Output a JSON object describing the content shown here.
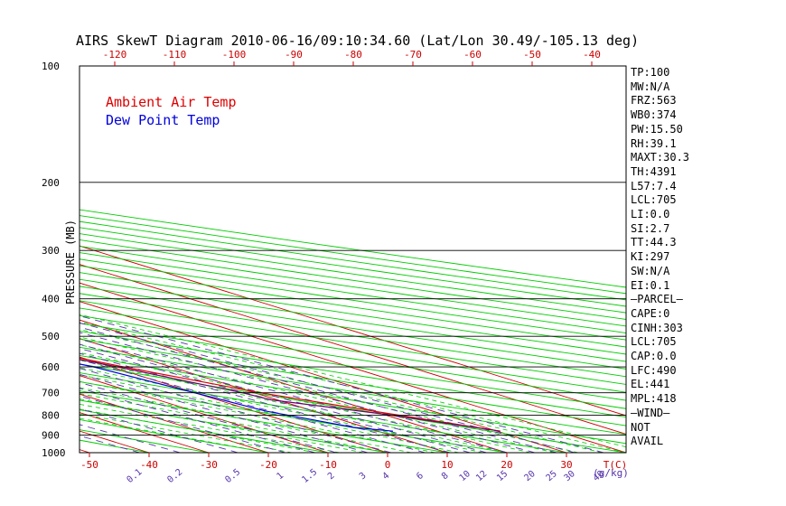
{
  "title": "AIRS SkewT Diagram 2010-06-16/09:10:34.60 (Lat/Lon 30.49/-105.13 deg)",
  "ylabel": "PRESSURE (MB)",
  "xlabel_unit": "T(C)",
  "mixing_label": "(g/kg)",
  "colors": {
    "temp": "#dd0000",
    "dew": "#0000dd",
    "parcel": "#6b006b",
    "isotherm": "#cc0000",
    "dry_adiabat": "#00cc00",
    "moist_adiabat": "#00cc00",
    "mixing_ratio": "#5533aa",
    "frame": "#000000"
  },
  "chart_data": {
    "type": "line",
    "title": "AIRS SkewT Diagram 2010-06-16/09:10:34.60 (Lat/Lon 30.49/-105.13 deg)",
    "ylabel": "PRESSURE (MB)",
    "xlabel": "T(C)",
    "y_scale": "log",
    "y_reversed": true,
    "pressure_levels": [
      100,
      200,
      300,
      400,
      500,
      600,
      700,
      800,
      900,
      1000
    ],
    "bottom_temp_ticks": [
      -50,
      -40,
      -30,
      -20,
      -10,
      0,
      10,
      20,
      30
    ],
    "top_temp_ticks": [
      -120,
      -110,
      -100,
      -90,
      -80,
      -70,
      -60,
      -50,
      -40
    ],
    "mixing_ratio_ticks": [
      "0.1",
      "0.2",
      "0.5",
      "1",
      "1.5",
      "2",
      "3",
      "4",
      "6",
      "8",
      "10",
      "12",
      "15",
      "20",
      "25",
      "30",
      "40"
    ],
    "legend": [
      "Ambient Air Temp",
      "Dew Point Temp"
    ],
    "series": [
      {
        "name": "Ambient Air Temp",
        "color": "#dd0000",
        "pressure": [
          880,
          840,
          780,
          700,
          600,
          500,
          450,
          400,
          350,
          300,
          250,
          200,
          175,
          150,
          125,
          100
        ],
        "temp": [
          30.5,
          26.5,
          20,
          11,
          2,
          -7,
          -12,
          -18,
          -25,
          -33,
          -43,
          -56,
          -62,
          -66,
          -62,
          -58
        ]
      },
      {
        "name": "Dew Point Temp",
        "color": "#0000dd",
        "pressure": [
          880,
          860,
          780,
          600,
          500,
          450,
          400,
          350,
          300,
          250,
          200,
          150,
          100
        ],
        "temp": [
          12.5,
          8,
          2,
          -3,
          -12,
          -22,
          -38,
          -44,
          -48,
          -53,
          -58,
          -67,
          -75
        ]
      },
      {
        "name": "Parcel",
        "color": "#6b006b",
        "pressure": [
          880,
          800,
          730,
          700,
          600,
          500,
          450,
          400,
          350,
          300,
          250,
          200,
          150,
          120,
          100
        ],
        "temp": [
          30.5,
          21,
          9,
          8,
          1,
          -9,
          -13,
          -18,
          -26,
          -34,
          -44,
          -57,
          -74,
          -86,
          -95
        ]
      }
    ]
  },
  "stats": [
    "TP:100",
    "MW:N/A",
    "FRZ:563",
    "WB0:374",
    "PW:15.50",
    "RH:39.1",
    "MAXT:30.3",
    "TH:4391",
    "L57:7.4",
    "LCL:705",
    "LI:0.0",
    "SI:2.7",
    "TT:44.3",
    "KI:297",
    "SW:N/A",
    "EI:0.1",
    "–PARCEL–",
    "CAPE:0",
    "CINH:303",
    "LCL:705",
    "CAP:0.0",
    "LFC:490",
    "EL:441",
    "MPL:418",
    "–WIND–",
    " NOT",
    " AVAIL"
  ]
}
